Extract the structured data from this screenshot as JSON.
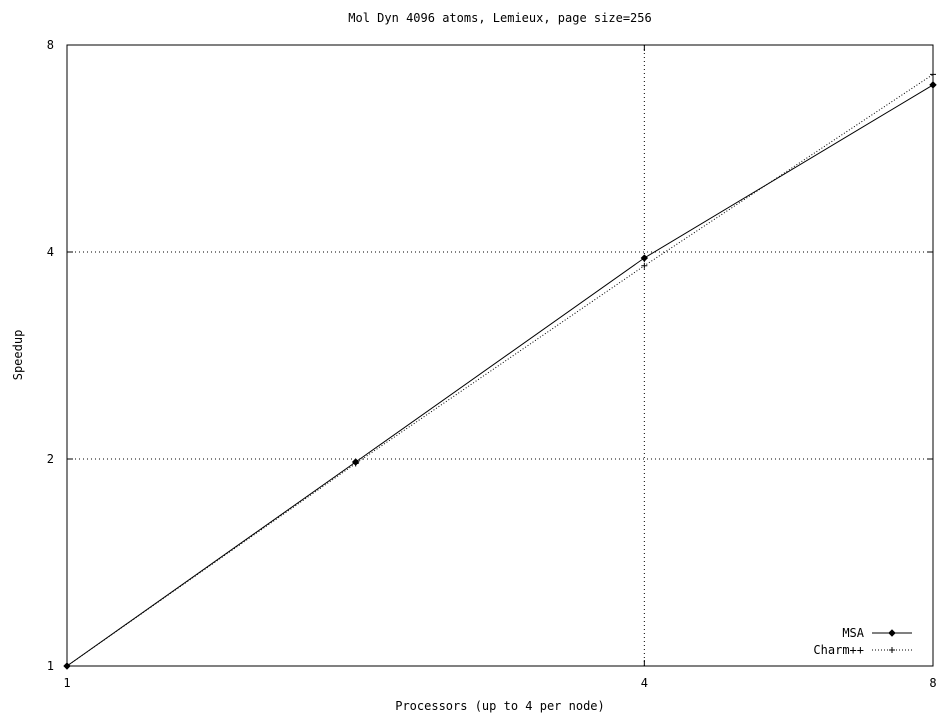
{
  "chart_data": {
    "type": "line",
    "title": "Mol Dyn 4096 atoms, Lemieux, page size=256",
    "xlabel": "Processors (up to 4 per node)",
    "ylabel": "Speedup",
    "xlim": [
      1,
      8
    ],
    "ylim": [
      1,
      8
    ],
    "x_ticks": [
      "1",
      "4",
      "8"
    ],
    "y_ticks": [
      "1",
      "2",
      "4",
      "8"
    ],
    "grid": true,
    "legend_position": "bottom-right",
    "series": [
      {
        "name": "MSA",
        "x": [
          1,
          2,
          4,
          8
        ],
        "y": [
          1,
          1.98,
          3.92,
          7.0
        ],
        "style": "solid",
        "marker": "diamond",
        "color": "#000000"
      },
      {
        "name": "Charm++",
        "x": [
          1,
          2,
          4,
          8
        ],
        "y": [
          1,
          1.97,
          3.82,
          7.25
        ],
        "style": "dotted",
        "marker": "plus",
        "color": "#000000"
      }
    ]
  }
}
